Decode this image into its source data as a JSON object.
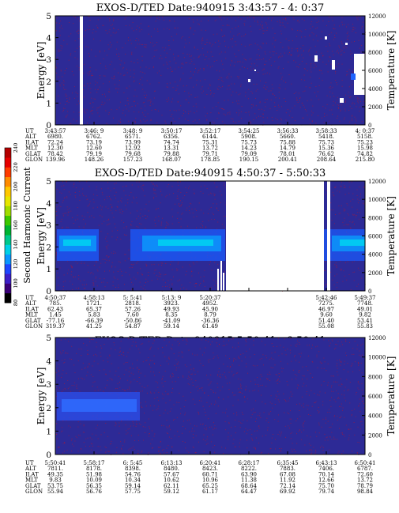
{
  "colorbar": {
    "label": "Second Harmonic Current",
    "ticks": [
      "80",
      "100",
      "120",
      "140",
      "160",
      "180",
      "200",
      "220",
      "240"
    ],
    "colors": [
      "#000000",
      "#3a0078",
      "#3c1ec8",
      "#1e46ff",
      "#0a96ff",
      "#00d0e6",
      "#00c88c",
      "#00b432",
      "#3cc800",
      "#a0dc00",
      "#e6e600",
      "#ffc800",
      "#ff8c00",
      "#ff3c00",
      "#e60000",
      "#b40000"
    ]
  },
  "colors": {
    "background": "#2d2a96",
    "noise": "#c0142a",
    "gap": "#ffffff"
  },
  "table_row_labels": [
    "UT",
    "ALT",
    "ILAT",
    "MLT",
    "GLAT",
    "GLON"
  ],
  "chart_data": [
    {
      "type": "heatmap",
      "title": "EXOS-D/TED   Date:940915   3:43:57 - 4: 0:37",
      "ylabel": "Energy [eV]",
      "y2label": "Temperature [K]",
      "ylim": [
        0,
        5
      ],
      "y2lim": [
        0,
        12000
      ],
      "yticks": [
        "0",
        "1",
        "2",
        "3",
        "4",
        "5"
      ],
      "y2ticks": [
        "0",
        "2000",
        "4000",
        "6000",
        "8000",
        "10000",
        "12000"
      ],
      "columns": [
        [
          "3:43:57",
          "6980.",
          "72.24",
          "12.30",
          "78.42",
          "139.96"
        ],
        [
          "3:46: 9",
          "6762.",
          "73.19",
          "12.60",
          "79.19",
          "148.26"
        ],
        [
          "3:48: 9",
          "6571.",
          "73.99",
          "12.92",
          "79.68",
          "157.23"
        ],
        [
          "3:50:17",
          "6356.",
          "74.74",
          "13.31",
          "79.88",
          "168.07"
        ],
        [
          "3:52:17",
          "6144.",
          "75.31",
          "13.72",
          "79.71",
          "178.85"
        ],
        [
          "3:54:25",
          "5908.",
          "75.73",
          "14.23",
          "79.09",
          "190.15"
        ],
        [
          "3:56:33",
          "5660.",
          "75.88",
          "14.79",
          "78.01",
          "200.41"
        ],
        [
          "3:58:33",
          "5418.",
          "75.73",
          "15.36",
          "76.62",
          "208.64"
        ],
        [
          "4: 0:37",
          "5158.",
          "75.23",
          "15.98",
          "74.82",
          "215.80"
        ]
      ]
    },
    {
      "type": "heatmap",
      "title": "EXOS-D/TED   Date:940915   4:50:37 - 5:50:33",
      "ylabel": "Energy [eV]",
      "y2label": "Temperature [K]",
      "ylim": [
        0,
        5
      ],
      "y2lim": [
        0,
        12000
      ],
      "yticks": [
        "0",
        "1",
        "2",
        "3",
        "4",
        "5"
      ],
      "y2ticks": [
        "0",
        "2000",
        "4000",
        "6000",
        "8000",
        "10000",
        "12000"
      ],
      "columns": [
        [
          "4:50:37",
          "785.",
          "62.43",
          "1.45",
          "-77.16",
          "319.37"
        ],
        [
          "4:58:13",
          "1721.",
          "65.37",
          "5.83",
          "-66.39",
          "41.25"
        ],
        [
          "5: 5:41",
          "2818.",
          "57.26",
          "7.60",
          "-50.86",
          "54.87"
        ],
        [
          "5:13: 9",
          "3923.",
          "49.93",
          "8.35",
          "-41.09",
          "59.14"
        ],
        [
          "5:20:37",
          "4952.",
          "45.90",
          "8.79",
          "-36.36",
          "61.49"
        ],
        [
          "",
          "",
          "",
          "",
          "",
          ""
        ],
        [
          "",
          "",
          "",
          "",
          "",
          ""
        ],
        [
          "5:42:46",
          "7275.",
          "46.97",
          "9.60",
          "51.40",
          "55.08"
        ],
        [
          "5:49:37",
          "7748.",
          "49.01",
          "9.82",
          "53.41",
          "55.83"
        ]
      ]
    },
    {
      "type": "heatmap",
      "title": "EXOS-D/TED   Date:940915   5:50:41 - 6:50:41",
      "ylabel": "Energy [eV]",
      "y2label": "Temperature [K]",
      "ylim": [
        0,
        5
      ],
      "y2lim": [
        0,
        12000
      ],
      "yticks": [
        "0",
        "1",
        "2",
        "3",
        "4",
        "5"
      ],
      "y2ticks": [
        "0",
        "2000",
        "4000",
        "6000",
        "8000",
        "10000",
        "12000"
      ],
      "columns": [
        [
          "5:50:41",
          "7811.",
          "49.35",
          "9.83",
          "53.75",
          "55.94"
        ],
        [
          "5:58:17",
          "8178.",
          "51.98",
          "10.09",
          "56.35",
          "56.76"
        ],
        [
          "6: 5:45",
          "8398.",
          "54.76",
          "10.34",
          "59.14",
          "57.75"
        ],
        [
          "6:13:13",
          "8480.",
          "57.67",
          "10.62",
          "62.11",
          "59.12"
        ],
        [
          "6:20:41",
          "8423.",
          "60.71",
          "10.96",
          "65.25",
          "61.17"
        ],
        [
          "6:28:17",
          "8222.",
          "63.90",
          "11.38",
          "68.64",
          "64.47"
        ],
        [
          "6:35:45",
          "7883.",
          "67.08",
          "11.92",
          "72.14",
          "69.92"
        ],
        [
          "6:43:13",
          "7406.",
          "70.14",
          "12.66",
          "75.70",
          "79.74"
        ],
        [
          "6:50:41",
          "6787.",
          "72.60",
          "13.72",
          "78.79",
          "98.84"
        ]
      ]
    }
  ]
}
